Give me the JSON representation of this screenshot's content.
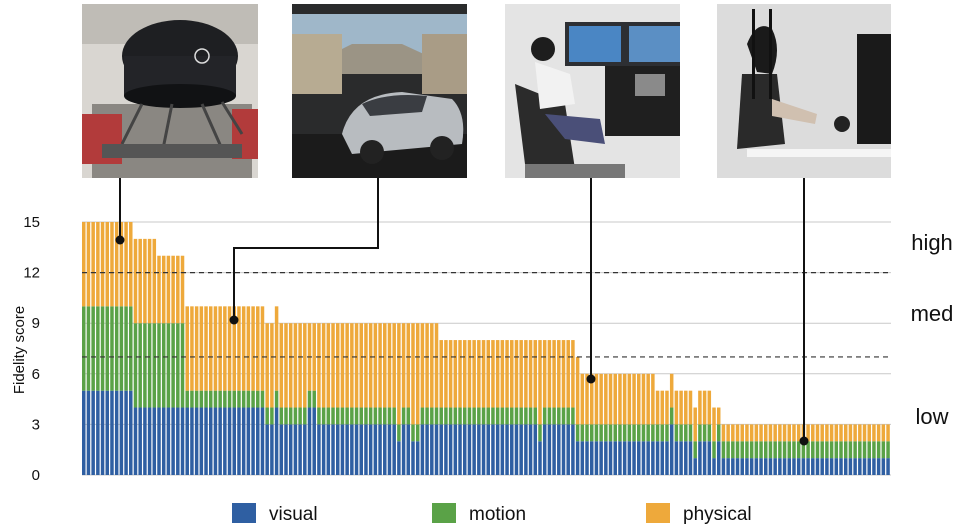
{
  "chart_data": {
    "type": "bar",
    "stacked": true,
    "ylabel": "Fidelity score",
    "ylim": [
      0,
      15
    ],
    "yticks": [
      "0",
      "3",
      "6",
      "9",
      "12",
      "15"
    ],
    "grid": true,
    "thresholds": [
      7,
      12
    ],
    "levels": [
      "high",
      "med",
      "low"
    ],
    "legend_position": "bottom",
    "series": [
      {
        "name": "visual",
        "color": "#2f5fa2",
        "values": [
          5,
          5,
          5,
          5,
          5,
          5,
          5,
          5,
          5,
          5,
          5,
          4,
          4,
          4,
          4,
          4,
          4,
          4,
          4,
          4,
          4,
          4,
          4,
          4,
          4,
          4,
          4,
          4,
          4,
          4,
          4,
          4,
          4,
          4,
          4,
          4,
          4,
          4,
          4,
          3,
          3,
          4,
          3,
          3,
          3,
          3,
          3,
          3,
          4,
          4,
          3,
          3,
          3,
          3,
          3,
          3,
          3,
          3,
          3,
          3,
          3,
          3,
          3,
          3,
          3,
          3,
          3,
          2,
          3,
          3,
          2,
          2,
          3,
          3,
          3,
          3,
          3,
          3,
          3,
          3,
          3,
          3,
          3,
          3,
          3,
          3,
          3,
          3,
          3,
          3,
          3,
          3,
          3,
          3,
          3,
          3,
          3,
          2,
          3,
          3,
          3,
          3,
          3,
          3,
          3,
          2,
          2,
          2,
          2,
          2,
          2,
          2,
          2,
          2,
          2,
          2,
          2,
          2,
          2,
          2,
          2,
          2,
          2,
          2,
          2,
          3,
          2,
          2,
          2,
          2,
          1,
          2,
          2,
          2,
          1,
          2,
          1,
          1,
          1,
          1,
          1,
          1,
          1,
          1,
          1,
          1,
          1,
          1,
          1,
          1,
          1,
          1,
          1,
          1,
          1,
          1,
          1,
          1,
          1,
          1,
          1,
          1,
          1,
          1,
          1,
          1,
          1,
          1,
          1,
          1,
          1,
          1
        ]
      },
      {
        "name": "motion",
        "color": "#5aa247",
        "values": [
          5,
          5,
          5,
          5,
          5,
          5,
          5,
          5,
          5,
          5,
          5,
          5,
          5,
          5,
          5,
          5,
          5,
          5,
          5,
          5,
          5,
          5,
          1,
          1,
          1,
          1,
          1,
          1,
          1,
          1,
          1,
          1,
          1,
          1,
          1,
          1,
          1,
          1,
          1,
          1,
          1,
          1,
          1,
          1,
          1,
          1,
          1,
          1,
          1,
          1,
          1,
          1,
          1,
          1,
          1,
          1,
          1,
          1,
          1,
          1,
          1,
          1,
          1,
          1,
          1,
          1,
          1,
          1,
          1,
          1,
          1,
          1,
          1,
          1,
          1,
          1,
          1,
          1,
          1,
          1,
          1,
          1,
          1,
          1,
          1,
          1,
          1,
          1,
          1,
          1,
          1,
          1,
          1,
          1,
          1,
          1,
          1,
          1,
          1,
          1,
          1,
          1,
          1,
          1,
          1,
          1,
          1,
          1,
          1,
          1,
          1,
          1,
          1,
          1,
          1,
          1,
          1,
          1,
          1,
          1,
          1,
          1,
          1,
          1,
          1,
          1,
          1,
          1,
          1,
          1,
          1,
          1,
          1,
          1,
          1,
          1,
          1,
          1,
          1,
          1,
          1,
          1,
          1,
          1,
          1,
          1,
          1,
          1,
          1,
          1,
          1,
          1,
          1,
          1,
          1,
          1,
          1,
          1,
          1,
          1,
          1,
          1,
          1,
          1,
          1,
          1,
          1,
          1,
          1,
          1,
          1,
          1,
          1,
          1,
          1,
          1,
          1,
          1,
          1
        ]
      },
      {
        "name": "physical",
        "color": "#eea93b",
        "values": [
          5,
          5,
          5,
          5,
          5,
          5,
          5,
          5,
          5,
          5,
          5,
          5,
          5,
          5,
          5,
          5,
          4,
          4,
          4,
          4,
          4,
          4,
          5,
          5,
          5,
          5,
          5,
          5,
          5,
          5,
          5,
          5,
          5,
          5,
          5,
          5,
          5,
          5,
          5,
          5,
          5,
          5,
          5,
          5,
          5,
          5,
          5,
          5,
          4,
          4,
          5,
          5,
          5,
          5,
          5,
          5,
          5,
          5,
          5,
          5,
          5,
          5,
          5,
          5,
          5,
          5,
          5,
          6,
          5,
          5,
          6,
          6,
          5,
          5,
          5,
          5,
          4,
          4,
          4,
          4,
          4,
          4,
          4,
          4,
          4,
          4,
          4,
          4,
          4,
          4,
          4,
          4,
          4,
          4,
          4,
          4,
          4,
          5,
          4,
          4,
          4,
          4,
          4,
          4,
          4,
          4,
          3,
          3,
          3,
          3,
          3,
          3,
          3,
          3,
          3,
          3,
          3,
          3,
          3,
          3,
          3,
          3,
          2,
          2,
          2,
          2,
          2,
          2,
          2,
          2,
          2,
          2,
          2,
          2,
          2,
          1,
          1,
          1,
          1,
          1,
          1,
          1,
          1,
          1,
          1,
          1,
          1,
          1,
          1,
          1,
          1,
          1,
          1,
          1,
          1,
          1,
          1,
          1,
          1,
          1,
          1,
          1,
          1,
          1,
          1,
          1,
          1,
          1,
          1,
          1,
          1,
          1,
          1,
          1,
          1,
          1
        ]
      }
    ]
  }
}
